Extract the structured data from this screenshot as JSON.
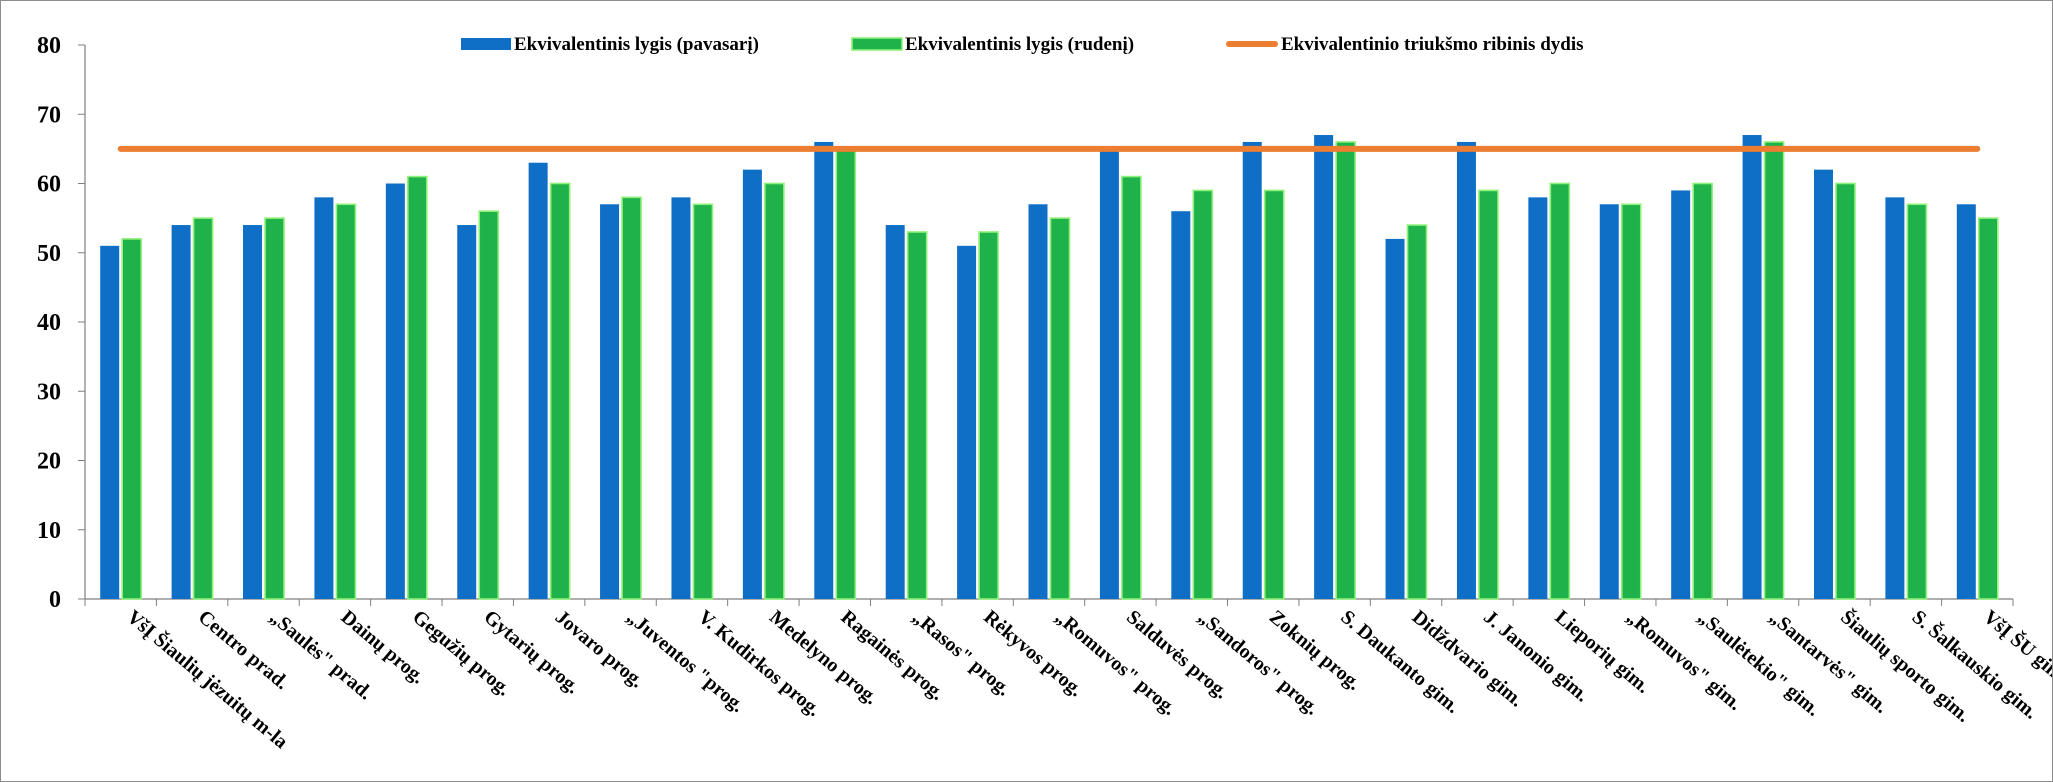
{
  "chart_data": {
    "type": "bar",
    "title": "",
    "xlabel": "",
    "ylabel": "",
    "ylim": [
      0,
      80
    ],
    "yticks": [
      0,
      10,
      20,
      30,
      40,
      50,
      60,
      70,
      80
    ],
    "grid": false,
    "legend_position": "top",
    "categories": [
      "VšĮ Šiaulių jėzuitų m-la",
      "Centro prad.",
      "„Saulės\" prad.",
      "Dainų prog.",
      "Gegužių prog.",
      "Gytarių prog.",
      "Jovaro prog.",
      "„Juventos \"prog.",
      "V. Kudirkos prog.",
      "Medelyno prog.",
      "Ragainės prog.",
      "„Rasos\" prog.",
      "Rėkyvos prog.",
      "„Romuvos\" prog.",
      "Salduvės prog.",
      "„Sandoros\" prog.",
      "Zoknių prog.",
      "S. Daukanto gim.",
      "Didždvario gim.",
      "J. Janonio gim.",
      "Lieporių gim.",
      "„Romuvos\" gim.",
      "„Saulėtekio\" gim.",
      "„Santarvės\" gim.",
      "Šiaulių sporto gim.",
      "S. Šalkauskio gim.",
      "VšĮ ŠU gim."
    ],
    "series": [
      {
        "name": "Ekvivalentinis lygis (pavasarį)",
        "type": "bar",
        "color": "#0f6fc6",
        "values": [
          51,
          54,
          54,
          58,
          60,
          54,
          63,
          57,
          58,
          62,
          66,
          54,
          51,
          57,
          65,
          56,
          66,
          67,
          52,
          66,
          58,
          57,
          59,
          67,
          62,
          58,
          57
        ]
      },
      {
        "name": "Ekvivalentinis lygis (rudenį)",
        "type": "bar",
        "color": "#1fb24a",
        "border_color": "#8ff07a",
        "values": [
          52,
          55,
          55,
          57,
          61,
          56,
          60,
          58,
          57,
          60,
          65,
          53,
          53,
          55,
          61,
          59,
          59,
          66,
          54,
          59,
          60,
          57,
          60,
          66,
          60,
          57,
          55
        ]
      },
      {
        "name": "Ekvivalentinio triukšmo ribinis dydis",
        "type": "line",
        "color": "#ed7d31",
        "values": [
          65,
          65,
          65,
          65,
          65,
          65,
          65,
          65,
          65,
          65,
          65,
          65,
          65,
          65,
          65,
          65,
          65,
          65,
          65,
          65,
          65,
          65,
          65,
          65,
          65,
          65,
          65
        ]
      }
    ]
  }
}
